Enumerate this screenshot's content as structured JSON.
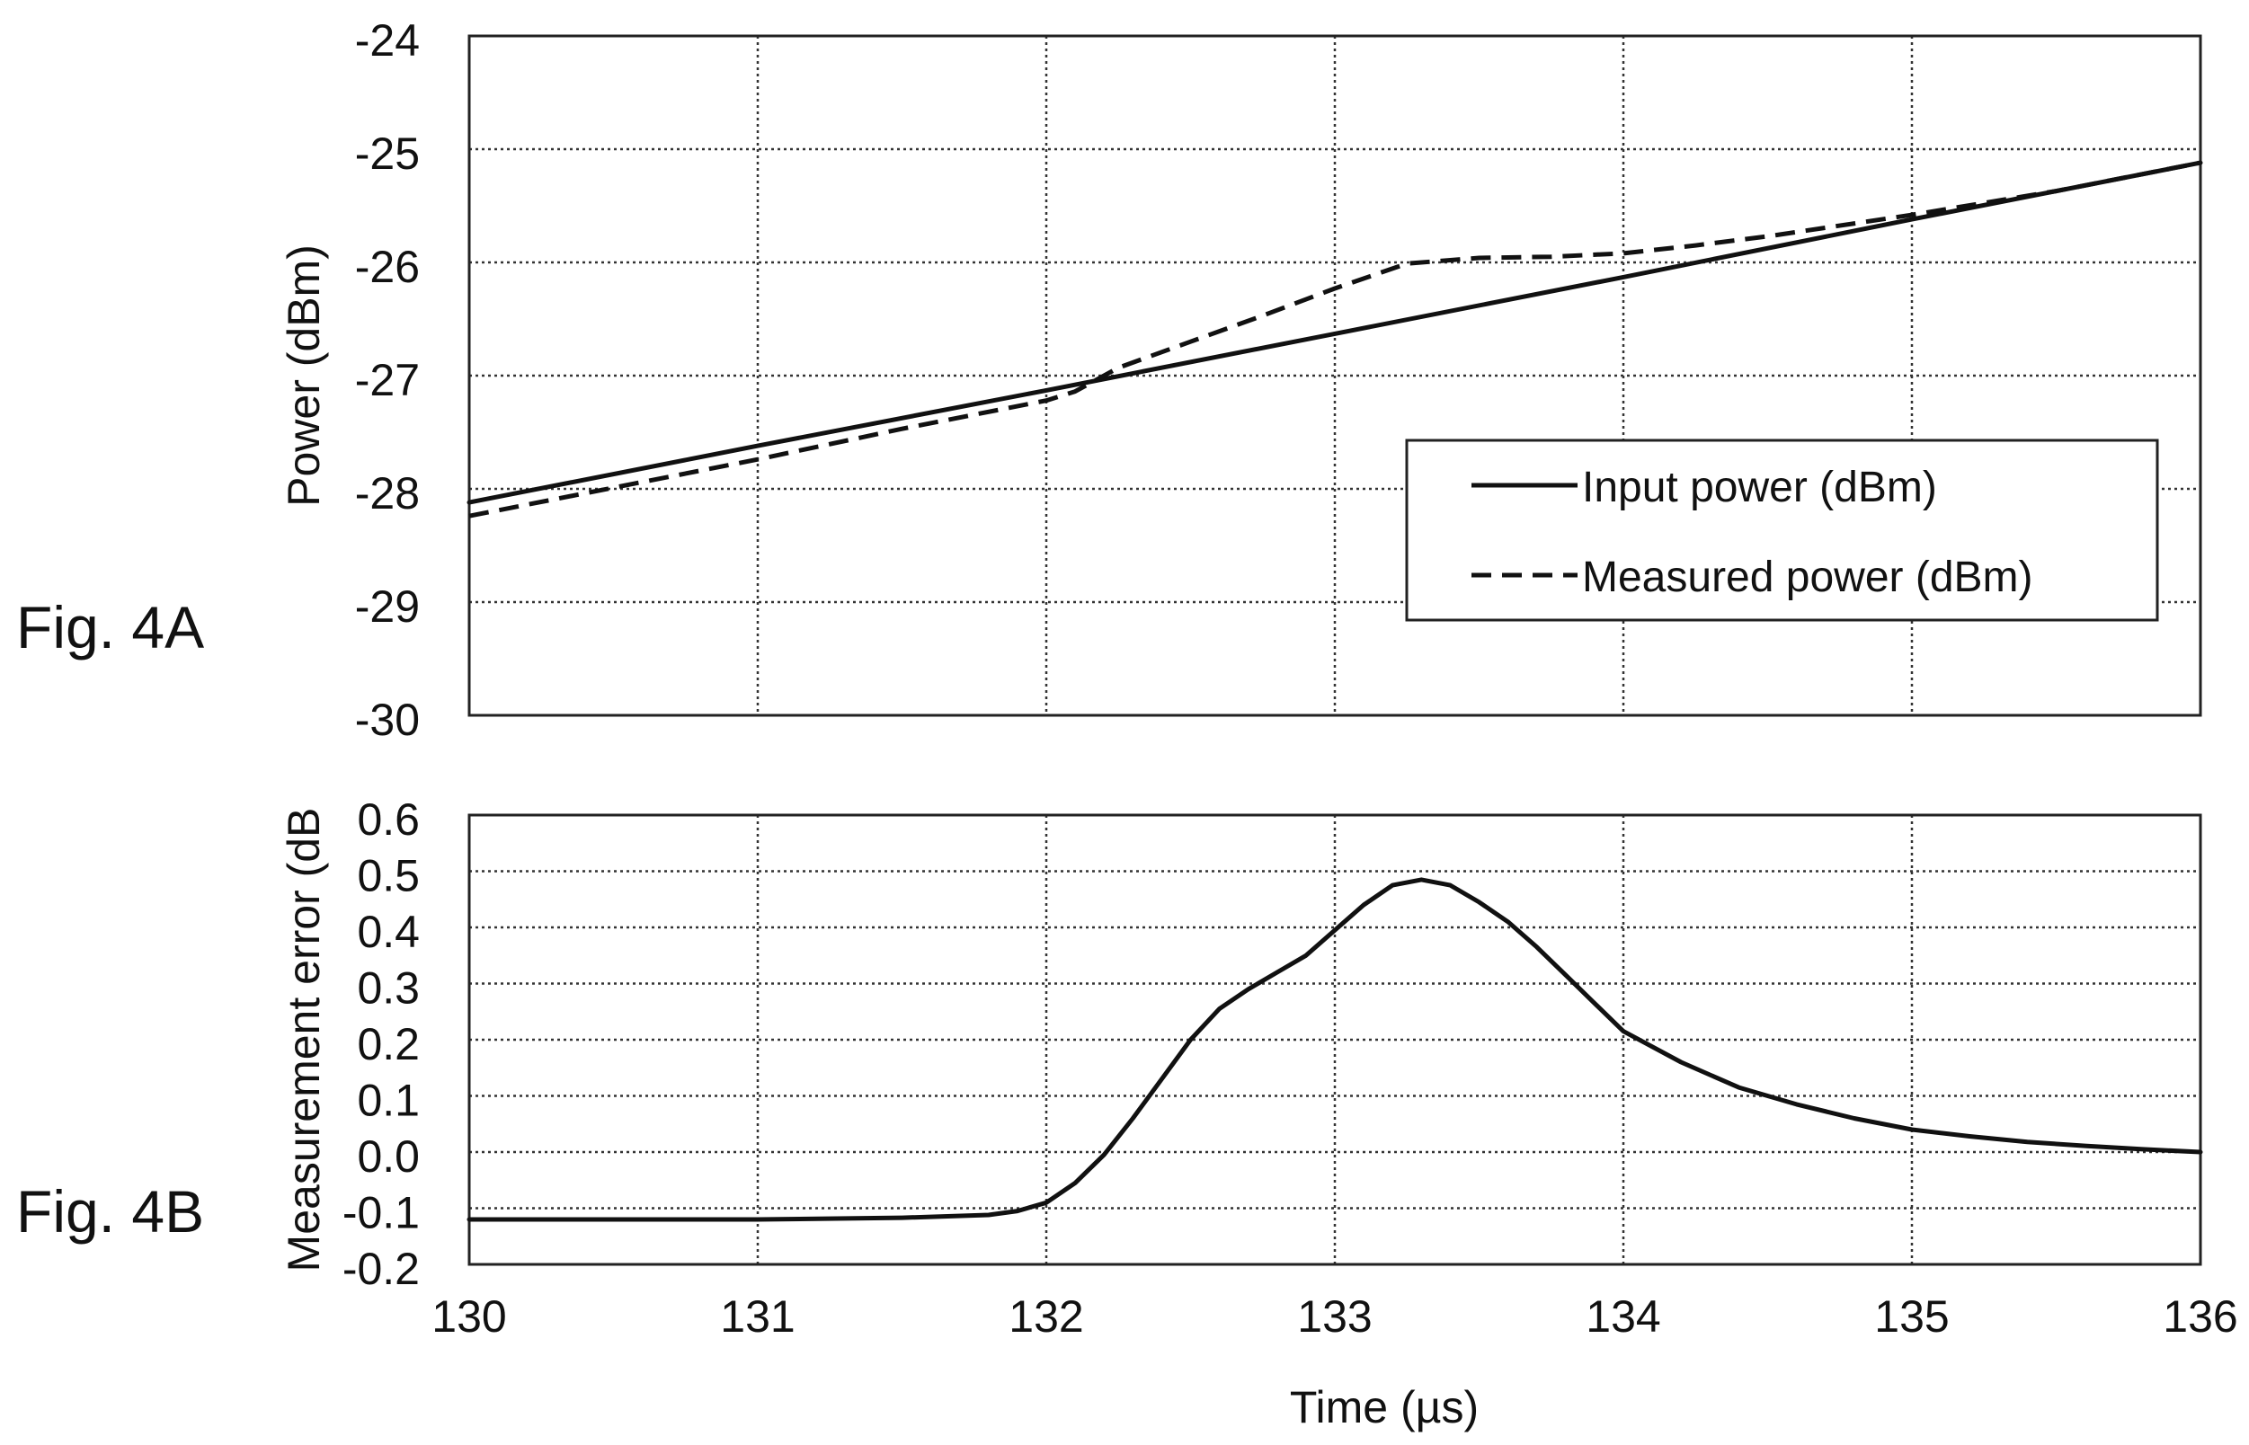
{
  "figure_labels": [
    "Fig. 4A",
    "Fig. 4B"
  ],
  "chart_data": [
    {
      "type": "line",
      "figure_label": "Fig. 4A",
      "title": "",
      "xlabel": "",
      "ylabel": "Power (dBm)",
      "xlim": [
        130,
        136
      ],
      "ylim": [
        -30,
        -24
      ],
      "xticks": [
        130,
        131,
        132,
        133,
        134,
        135,
        136
      ],
      "yticks": [
        -30,
        -29,
        -28,
        -27,
        -26,
        -25,
        -24
      ],
      "ytick_labels": [
        "-30",
        "-29",
        "-28",
        "-27",
        "-26",
        "-25",
        "-24"
      ],
      "grid": true,
      "legend": {
        "placement": "center-right",
        "entries": [
          "Input power (dBm)",
          "Measured power (dBm)"
        ]
      },
      "series": [
        {
          "name": "Input power (dBm)",
          "style": "solid",
          "x": [
            130,
            131,
            132,
            133,
            134,
            135,
            136
          ],
          "y": [
            -28.12,
            -27.62,
            -27.13,
            -26.63,
            -26.13,
            -25.62,
            -25.12
          ]
        },
        {
          "name": "Measured power (dBm)",
          "style": "dashed",
          "x": [
            130,
            130.5,
            131,
            131.5,
            132,
            132.1,
            132.25,
            132.5,
            132.75,
            133,
            133.25,
            133.5,
            133.75,
            134,
            134.25,
            134.5,
            135,
            135.5,
            136
          ],
          "y": [
            -28.24,
            -27.99,
            -27.74,
            -27.47,
            -27.22,
            -27.14,
            -26.93,
            -26.7,
            -26.47,
            -26.23,
            -26.01,
            -25.96,
            -25.95,
            -25.92,
            -25.85,
            -25.77,
            -25.58,
            -25.37,
            -25.12
          ]
        }
      ]
    },
    {
      "type": "line",
      "figure_label": "Fig. 4B",
      "title": "",
      "xlabel": "Time (µs)",
      "ylabel": "Measurement error (dB",
      "xlim": [
        130,
        136
      ],
      "ylim": [
        -0.2,
        0.6
      ],
      "xticks": [
        130,
        131,
        132,
        133,
        134,
        135,
        136
      ],
      "xtick_labels": [
        "130",
        "131",
        "132",
        "133",
        "134",
        "135",
        "136"
      ],
      "yticks": [
        -0.2,
        -0.1,
        0.0,
        0.1,
        0.2,
        0.3,
        0.4,
        0.5,
        0.6
      ],
      "ytick_labels": [
        "-0.2",
        "-0.1",
        "0.0",
        "0.1",
        "0.2",
        "0.3",
        "0.4",
        "0.5",
        "0.6"
      ],
      "grid": true,
      "series": [
        {
          "x": [
            130,
            131,
            131.5,
            131.8,
            131.9,
            132,
            132.1,
            132.2,
            132.3,
            132.4,
            132.5,
            132.6,
            132.7,
            132.8,
            132.9,
            133,
            133.1,
            133.2,
            133.3,
            133.4,
            133.5,
            133.6,
            133.7,
            133.8,
            133.9,
            134,
            134.2,
            134.4,
            134.6,
            134.8,
            135,
            135.2,
            135.4,
            135.6,
            135.8,
            136
          ],
          "y": [
            -0.12,
            -0.12,
            -0.117,
            -0.112,
            -0.105,
            -0.09,
            -0.055,
            -0.005,
            0.06,
            0.13,
            0.2,
            0.255,
            0.29,
            0.32,
            0.35,
            0.395,
            0.44,
            0.475,
            0.485,
            0.475,
            0.445,
            0.41,
            0.365,
            0.315,
            0.265,
            0.215,
            0.16,
            0.115,
            0.085,
            0.06,
            0.04,
            0.028,
            0.018,
            0.011,
            0.005,
            0.0
          ]
        }
      ]
    }
  ]
}
